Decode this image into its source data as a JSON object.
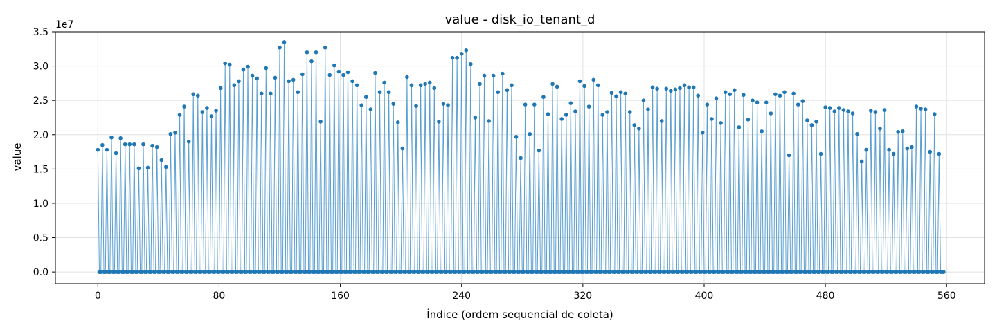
{
  "chart_data": {
    "type": "line",
    "title": "value - disk_io_tenant_d",
    "xlabel": "Índice (ordem sequencial de coleta)",
    "ylabel": "value",
    "y_multiplier_label": "1e7",
    "xlim": [
      -28,
      585
    ],
    "ylim": [
      -0.17,
      3.5
    ],
    "x_ticks": [
      0,
      80,
      160,
      240,
      320,
      400,
      480,
      560
    ],
    "x_tick_labels": [
      "0",
      "80",
      "160",
      "240",
      "320",
      "400",
      "480",
      "560"
    ],
    "y_ticks": [
      0.0,
      0.5,
      1.0,
      1.5,
      2.0,
      2.5,
      3.0,
      3.5
    ],
    "y_tick_labels": [
      "0.0",
      "0.5",
      "1.0",
      "1.5",
      "2.0",
      "2.5",
      "3.0",
      "3.5"
    ],
    "grid": true,
    "legend": "none",
    "colors": {
      "line": "#5a9fd0",
      "marker": "#1f77b4"
    },
    "series": [
      {
        "pattern": "peak values at every third index, zero otherwise; x = 0..558",
        "x_start": 0,
        "x_end": 558,
        "peak_step": 3,
        "peak_values_1e7": [
          1.78,
          1.85,
          1.78,
          1.96,
          1.73,
          1.95,
          1.86,
          1.86,
          1.86,
          1.51,
          1.86,
          1.52,
          1.84,
          1.82,
          1.63,
          1.53,
          2.01,
          2.03,
          2.29,
          2.41,
          1.9,
          2.59,
          2.57,
          2.33,
          2.39,
          2.27,
          2.35,
          2.68,
          3.04,
          3.02,
          2.72,
          2.78,
          2.95,
          2.99,
          2.86,
          2.82,
          2.6,
          2.97,
          2.6,
          2.83,
          3.27,
          3.35,
          2.78,
          2.8,
          2.62,
          2.88,
          3.2,
          3.07,
          3.2,
          2.19,
          3.27,
          2.87,
          3.01,
          2.92,
          2.87,
          2.91,
          2.78,
          2.72,
          2.43,
          2.55,
          2.37,
          2.9,
          2.62,
          2.76,
          2.62,
          2.45,
          2.18,
          1.8,
          2.84,
          2.72,
          2.42,
          2.72,
          2.74,
          2.76,
          2.68,
          2.19,
          2.45,
          2.43,
          3.12,
          3.12,
          3.18,
          3.23,
          3.03,
          2.25,
          2.74,
          2.86,
          2.2,
          2.86,
          2.62,
          2.89,
          2.65,
          2.72,
          1.97,
          1.66,
          2.44,
          2.01,
          2.44,
          1.77,
          2.55,
          2.3,
          2.74,
          2.7,
          2.23,
          2.29,
          2.46,
          2.34,
          2.78,
          2.71,
          2.41,
          2.8,
          2.72,
          2.29,
          2.33,
          2.61,
          2.56,
          2.62,
          2.6,
          2.33,
          2.14,
          2.09,
          2.5,
          2.37,
          2.69,
          2.67,
          2.2,
          2.67,
          2.64,
          2.66,
          2.68,
          2.72,
          2.69,
          2.69,
          2.57,
          2.03,
          2.44,
          2.23,
          2.53,
          2.17,
          2.62,
          2.59,
          2.65,
          2.11,
          2.58,
          2.22,
          2.5,
          2.47,
          2.05,
          2.47,
          2.31,
          2.59,
          2.57,
          2.62,
          1.7,
          2.6,
          2.44,
          2.49,
          2.21,
          2.14,
          2.19,
          1.72,
          2.4,
          2.39,
          2.34,
          2.39,
          2.36,
          2.34,
          2.31,
          2.01,
          1.61,
          1.78,
          2.35,
          2.33,
          2.09,
          2.36,
          1.78,
          1.72,
          2.04,
          2.05,
          1.8,
          1.82,
          2.41,
          2.38,
          2.37,
          1.75,
          2.3,
          1.72
        ]
      }
    ]
  }
}
